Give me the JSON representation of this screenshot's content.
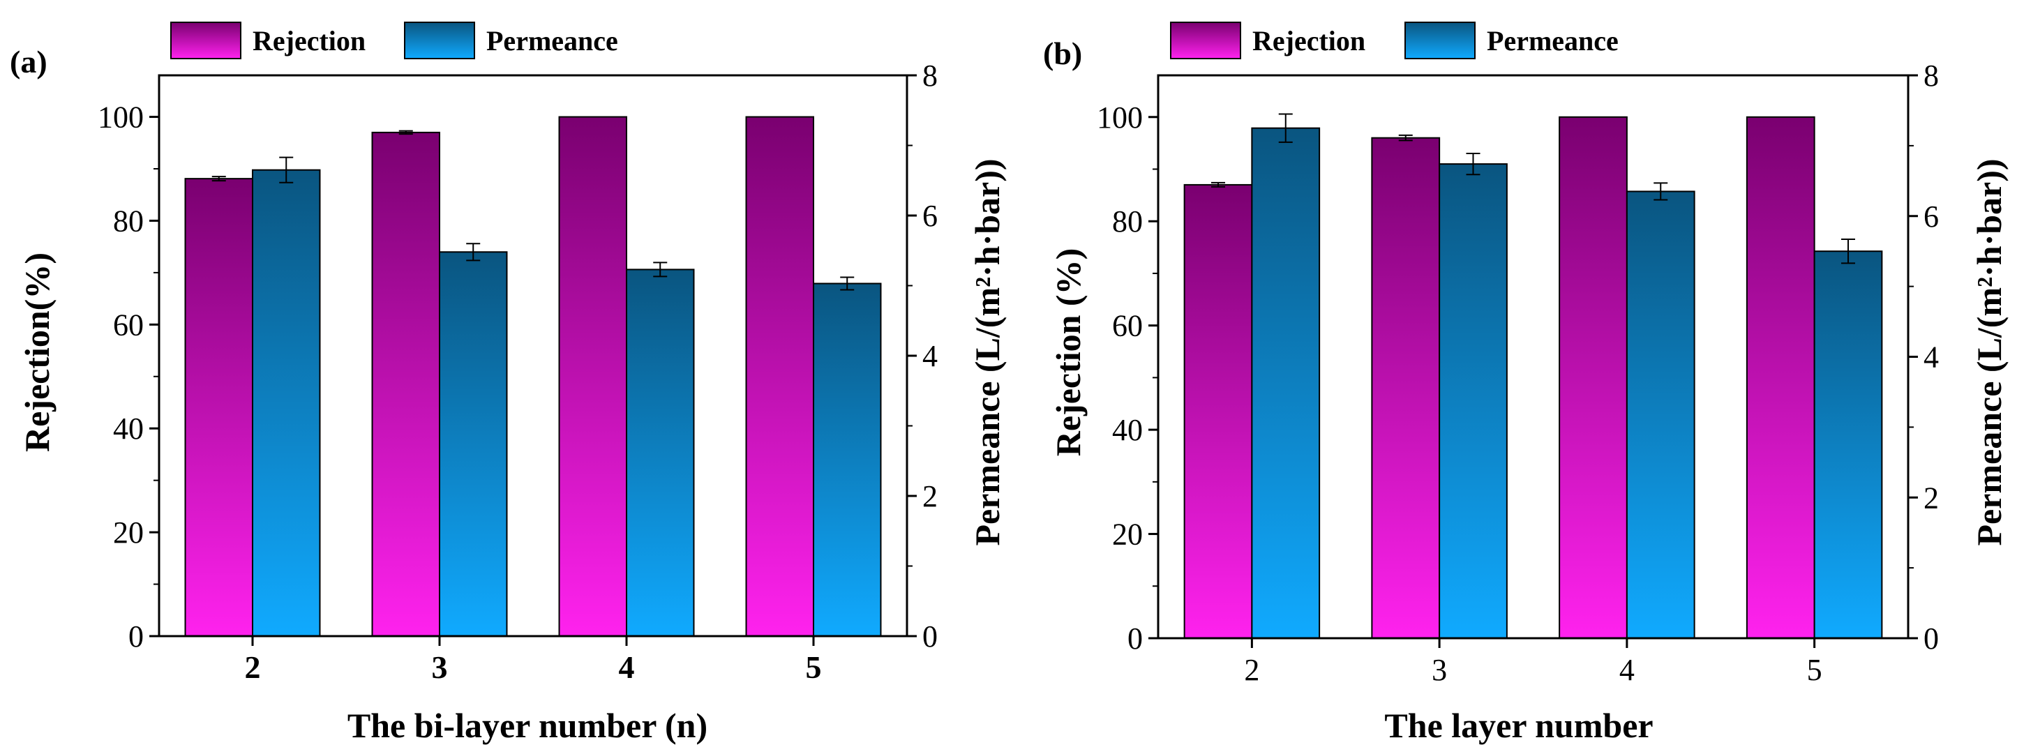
{
  "figure": {
    "legend_rejection": "Rejection",
    "legend_permeance": "Permeance"
  },
  "colors": {
    "rejection_top": "#7a0070",
    "rejection_bottom": "#ff22ee",
    "permeance_top": "#0a5580",
    "permeance_bottom": "#10aaff",
    "axis": "#000000"
  },
  "chart_data": [
    {
      "type": "bar",
      "panel_label": "(a)",
      "xlabel": "The bi-layer number (n)",
      "ylabel": "Rejection(%)",
      "y2label": "Permeance (L/(m²·h·bar))",
      "categories": [
        "2",
        "3",
        "4",
        "5"
      ],
      "ylim": [
        0,
        108
      ],
      "y2lim": [
        0,
        8
      ],
      "yticks": [
        "0",
        "20",
        "40",
        "60",
        "80",
        "100"
      ],
      "y2ticks": [
        "0",
        "2",
        "4",
        "6",
        "8"
      ],
      "legend_position": "top",
      "series": [
        {
          "name": "Rejection",
          "axis": "left",
          "values": [
            88.1,
            97.0,
            100.0,
            100.0
          ],
          "errors": [
            0.4,
            0.3,
            0.0,
            0.0
          ]
        },
        {
          "name": "Permeance",
          "axis": "right",
          "values": [
            6.65,
            5.48,
            5.23,
            5.03
          ],
          "errors": [
            0.18,
            0.12,
            0.1,
            0.09
          ]
        }
      ]
    },
    {
      "type": "bar",
      "panel_label": "(b)",
      "xlabel": "The layer number",
      "ylabel": "Rejection (%)",
      "y2label": "Permeance (L/(m²·h·bar))",
      "categories": [
        "2",
        "3",
        "4",
        "5"
      ],
      "ylim": [
        0,
        108
      ],
      "y2lim": [
        0,
        8
      ],
      "yticks": [
        "0",
        "20",
        "40",
        "60",
        "80",
        "100"
      ],
      "y2ticks": [
        "0",
        "2",
        "4",
        "6",
        "8"
      ],
      "legend_position": "top",
      "series": [
        {
          "name": "Rejection",
          "axis": "left",
          "values": [
            87.0,
            96.0,
            100.0,
            100.0
          ],
          "errors": [
            0.4,
            0.5,
            0.0,
            0.0
          ]
        },
        {
          "name": "Permeance",
          "axis": "right",
          "values": [
            7.25,
            6.74,
            6.35,
            5.5
          ],
          "errors": [
            0.2,
            0.15,
            0.12,
            0.17
          ]
        }
      ]
    }
  ]
}
